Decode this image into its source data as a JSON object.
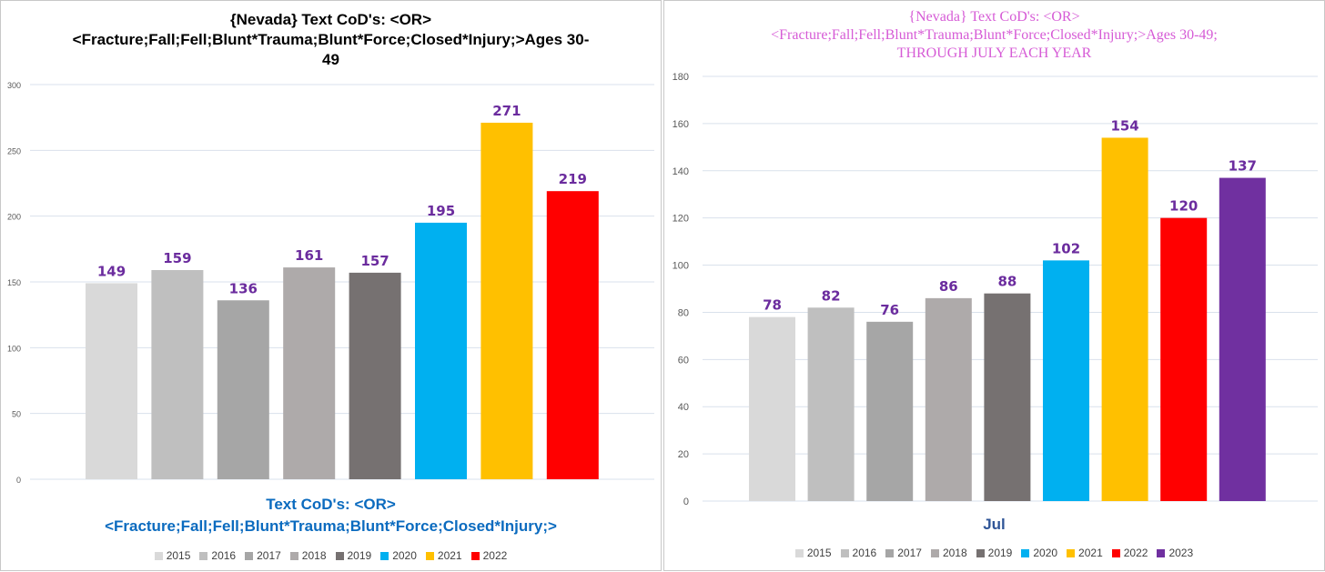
{
  "chart_data": [
    {
      "type": "bar",
      "title_lines": [
        "{Nevada}  Text CoD's: <OR>",
        "<Fracture;Fall;Fell;Blunt*Trauma;Blunt*Force;Closed*Injury;>Ages 30-",
        "49"
      ],
      "xlabel_lines": [
        "Text CoD's: <OR>",
        "<Fracture;Fall;Fell;Blunt*Trauma;Blunt*Force;Closed*Injury;>"
      ],
      "ylabel": "",
      "ylim": [
        0,
        300
      ],
      "yticks": [
        0,
        50,
        100,
        150,
        200,
        250,
        300
      ],
      "grid": true,
      "legend_position": "bottom",
      "series": [
        {
          "name": "2015",
          "value": 149,
          "color": "#d9d9d9"
        },
        {
          "name": "2016",
          "value": 159,
          "color": "#bfbfbf"
        },
        {
          "name": "2017",
          "value": 136,
          "color": "#a6a6a6"
        },
        {
          "name": "2018",
          "value": 161,
          "color": "#aeaaaa"
        },
        {
          "name": "2019",
          "value": 157,
          "color": "#767171"
        },
        {
          "name": "2020",
          "value": 195,
          "color": "#00b0f0"
        },
        {
          "name": "2021",
          "value": 271,
          "color": "#ffc000"
        },
        {
          "name": "2022",
          "value": 219,
          "color": "#ff0000"
        }
      ]
    },
    {
      "type": "bar",
      "title_lines": [
        "{Nevada}  Text CoD's: <OR>",
        "<Fracture;Fall;Fell;Blunt*Trauma;Blunt*Force;Closed*Injury;>Ages 30-49;",
        "THROUGH JULY EACH YEAR"
      ],
      "xlabel": "Jul",
      "ylabel": "",
      "ylim": [
        0,
        180
      ],
      "yticks": [
        0,
        20,
        40,
        60,
        80,
        100,
        120,
        140,
        160,
        180
      ],
      "grid": true,
      "legend_position": "bottom",
      "series": [
        {
          "name": "2015",
          "value": 78,
          "color": "#d9d9d9"
        },
        {
          "name": "2016",
          "value": 82,
          "color": "#bfbfbf"
        },
        {
          "name": "2017",
          "value": 76,
          "color": "#a6a6a6"
        },
        {
          "name": "2018",
          "value": 86,
          "color": "#aeaaaa"
        },
        {
          "name": "2019",
          "value": 88,
          "color": "#767171"
        },
        {
          "name": "2020",
          "value": 102,
          "color": "#00b0f0"
        },
        {
          "name": "2021",
          "value": 154,
          "color": "#ffc000"
        },
        {
          "name": "2022",
          "value": 120,
          "color": "#ff0000"
        },
        {
          "name": "2023",
          "value": 137,
          "color": "#7030a0"
        }
      ]
    }
  ]
}
